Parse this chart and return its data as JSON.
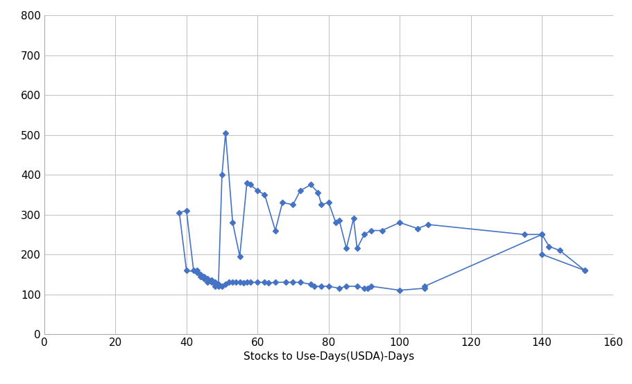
{
  "x": [
    152,
    140,
    140,
    107,
    107,
    100,
    92,
    91,
    90,
    88,
    85,
    83,
    80,
    78,
    76,
    75,
    72,
    70,
    68,
    65,
    63,
    62,
    60,
    58,
    57,
    56,
    55,
    54,
    53,
    52,
    51,
    50,
    49,
    48,
    47,
    46,
    45,
    44,
    43,
    40,
    38,
    40,
    42,
    43,
    44,
    45,
    46,
    47,
    48,
    49,
    50,
    51,
    53,
    55,
    57,
    58,
    60,
    62,
    65,
    67,
    70,
    72,
    75,
    77,
    78,
    80,
    82,
    83,
    85,
    87,
    88,
    90,
    92,
    95,
    100,
    105,
    108,
    135,
    140,
    142,
    145,
    152
  ],
  "y": [
    160,
    200,
    250,
    120,
    115,
    110,
    120,
    115,
    115,
    120,
    120,
    115,
    120,
    120,
    120,
    125,
    130,
    130,
    130,
    130,
    128,
    130,
    130,
    130,
    130,
    128,
    130,
    130,
    130,
    130,
    125,
    120,
    120,
    120,
    130,
    130,
    140,
    145,
    155,
    160,
    305,
    310,
    160,
    160,
    150,
    145,
    140,
    135,
    130,
    125,
    400,
    505,
    280,
    195,
    380,
    375,
    360,
    350,
    260,
    330,
    325,
    360,
    375,
    355,
    325,
    330,
    280,
    285,
    215,
    290,
    215,
    250,
    260,
    260,
    280,
    265,
    275,
    250,
    250,
    220,
    210,
    160
  ],
  "line_color": "#4472C4",
  "marker": "D",
  "marker_size": 4,
  "xlabel": "Stocks to Use-Days(USDA)-Days",
  "ylabel": "",
  "xlim": [
    0,
    160
  ],
  "ylim": [
    0,
    800
  ],
  "xticks": [
    0,
    20,
    40,
    60,
    80,
    100,
    120,
    140,
    160
  ],
  "yticks": [
    0,
    100,
    200,
    300,
    400,
    500,
    600,
    700,
    800
  ],
  "background_color": "#ffffff",
  "xlabel_fontsize": 11,
  "tick_fontsize": 11
}
